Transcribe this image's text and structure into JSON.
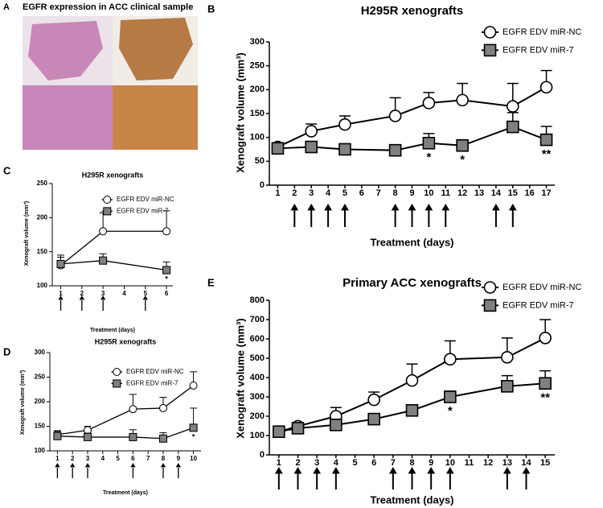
{
  "image_panel": {
    "label": "A",
    "title": "EGFR expression in ACC clinical sample"
  },
  "chart_data": [
    {
      "type": "line",
      "panel": "B",
      "title": "H295R xenografts",
      "xlabel": "Treatment (days)",
      "ylabel": "Xenograft volume (mm³)",
      "xlim": [
        0.5,
        17.5
      ],
      "xticks": [
        1,
        2,
        3,
        4,
        5,
        6,
        7,
        8,
        9,
        10,
        11,
        12,
        13,
        14,
        15,
        16,
        17
      ],
      "ylim": [
        0,
        300
      ],
      "yticks": [
        0,
        50,
        100,
        150,
        200,
        250,
        300
      ],
      "series": [
        {
          "name": "EGFR EDV miR-NC",
          "color": "#ffffff",
          "marker": "circle",
          "x": [
            1,
            3,
            5,
            8,
            10,
            12,
            15,
            17
          ],
          "values": [
            80,
            113,
            127,
            145,
            172,
            178,
            165,
            205
          ],
          "errors": [
            5,
            15,
            18,
            38,
            22,
            35,
            48,
            35
          ]
        },
        {
          "name": "EGFR EDV miR-7",
          "color": "#808080",
          "marker": "square",
          "x": [
            1,
            3,
            5,
            8,
            10,
            12,
            15,
            17
          ],
          "values": [
            77,
            80,
            75,
            73,
            88,
            83,
            122,
            95
          ],
          "errors": [
            5,
            10,
            5,
            5,
            20,
            12,
            30,
            28
          ]
        }
      ],
      "arrows": [
        2,
        3,
        4,
        5,
        8,
        9,
        10,
        11,
        14,
        15
      ],
      "annotations": [
        {
          "x": 10,
          "text": "*"
        },
        {
          "x": 12,
          "text": "*"
        },
        {
          "x": 17,
          "text": "**"
        }
      ]
    },
    {
      "type": "line",
      "panel": "C",
      "title": "H295R xenografts",
      "xlabel": "Treatment (days)",
      "ylabel": "Xenograft volume (mm³)",
      "xlim": [
        0.6,
        6.3
      ],
      "xticks": [
        1,
        2,
        3,
        4,
        5,
        6
      ],
      "ylim": [
        100,
        250
      ],
      "yticks": [
        100,
        150,
        200,
        250
      ],
      "series": [
        {
          "name": "EGFR EDV miR-NC",
          "color": "#ffffff",
          "marker": "circle",
          "x": [
            1,
            3,
            6
          ],
          "values": [
            130,
            180,
            180
          ],
          "errors": [
            15,
            27,
            30
          ]
        },
        {
          "name": "EGFR EDV miR-7",
          "color": "#808080",
          "marker": "square",
          "x": [
            1,
            3,
            6
          ],
          "values": [
            132,
            137,
            123
          ],
          "errors": [
            10,
            10,
            12
          ]
        }
      ],
      "arrows": [
        1,
        2,
        3,
        5
      ],
      "annotations": [
        {
          "x": 6,
          "text": "*"
        }
      ]
    },
    {
      "type": "line",
      "panel": "D",
      "title": "H295R xenografts",
      "xlabel": "Treatment (days)",
      "ylabel": "Xenograft volume (mm³)",
      "xlim": [
        0.5,
        10.5
      ],
      "xticks": [
        1,
        2,
        3,
        4,
        5,
        6,
        7,
        8,
        9,
        10
      ],
      "ylim": [
        100,
        300
      ],
      "yticks": [
        100,
        150,
        200,
        250,
        300
      ],
      "series": [
        {
          "name": "EGFR EDV miR-NC",
          "color": "#ffffff",
          "marker": "circle",
          "x": [
            1,
            3,
            6,
            8,
            10
          ],
          "values": [
            133,
            142,
            185,
            187,
            233
          ],
          "errors": [
            8,
            8,
            30,
            22,
            28
          ]
        },
        {
          "name": "EGFR EDV miR-7",
          "color": "#808080",
          "marker": "square",
          "x": [
            1,
            3,
            6,
            8,
            10
          ],
          "values": [
            130,
            128,
            128,
            125,
            147
          ],
          "errors": [
            10,
            8,
            15,
            12,
            40
          ]
        }
      ],
      "arrows": [
        1,
        2,
        3,
        6,
        8,
        9
      ],
      "annotations": [
        {
          "x": 10,
          "text": "*"
        }
      ]
    },
    {
      "type": "line",
      "panel": "E",
      "title": "Primary ACC xenografts",
      "xlabel": "Treatment (days)",
      "ylabel": "Xenograft volume (mm³)",
      "xlim": [
        0.5,
        15.5
      ],
      "xticks": [
        1,
        2,
        3,
        4,
        5,
        6,
        7,
        8,
        9,
        10,
        11,
        12,
        13,
        14,
        15
      ],
      "ylim": [
        0,
        800
      ],
      "yticks": [
        0,
        100,
        200,
        300,
        400,
        500,
        600,
        700,
        800
      ],
      "series": [
        {
          "name": "EGFR EDV miR-NC",
          "color": "#ffffff",
          "marker": "circle",
          "x": [
            1,
            2,
            4,
            6,
            8,
            10,
            13,
            15
          ],
          "values": [
            120,
            148,
            200,
            285,
            385,
            495,
            505,
            605
          ],
          "errors": [
            10,
            10,
            45,
            40,
            85,
            95,
            100,
            95
          ]
        },
        {
          "name": "EGFR EDV miR-7",
          "color": "#808080",
          "marker": "square",
          "x": [
            1,
            2,
            4,
            6,
            8,
            10,
            13,
            15
          ],
          "values": [
            120,
            138,
            155,
            185,
            230,
            300,
            355,
            370
          ],
          "errors": [
            10,
            10,
            20,
            15,
            20,
            30,
            55,
            65
          ]
        }
      ],
      "arrows": [
        1,
        2,
        3,
        4,
        7,
        8,
        9,
        10,
        13,
        14
      ],
      "annotations": [
        {
          "x": 10,
          "text": "*"
        },
        {
          "x": 15,
          "text": "**"
        }
      ]
    }
  ]
}
